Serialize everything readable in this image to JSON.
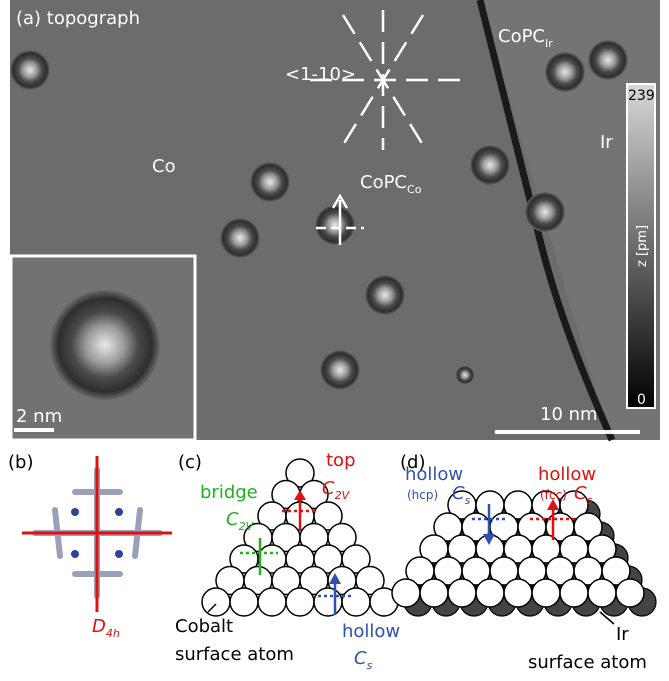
{
  "panel_a": {
    "label": "(a) topograph",
    "direction": "<1-10>",
    "molecule_ir": {
      "text": "CoPC",
      "sub": "Ir"
    },
    "region_ir": "Ir",
    "region_co": "Co",
    "molecule_co": {
      "text": "CoPC",
      "sub": "Co"
    },
    "colorbar": {
      "max": "239",
      "axis": "z [pm]",
      "min": "0"
    },
    "inset_scale": "2 nm",
    "scale": "10 nm"
  },
  "panel_b": {
    "label": "(b)",
    "symmetry": {
      "text": "D",
      "sub": "4h"
    }
  },
  "panel_c": {
    "label": "(c)",
    "top": "top",
    "top_symmetry": {
      "text": "C",
      "sub": "2V"
    },
    "bridge": "bridge",
    "bridge_symmetry": {
      "text": "C",
      "sub": "2V"
    },
    "atom_label": [
      "Cobalt",
      "surface atom"
    ],
    "hollow": "hollow",
    "hollow_symmetry": {
      "text": "C",
      "sub": "s"
    }
  },
  "panel_d": {
    "label": "(d)",
    "hollow_hcp": "hollow",
    "hcp": "(hcp)",
    "hcp_symmetry": {
      "text": "C",
      "sub": "s"
    },
    "hollow_fcc": "hollow",
    "fcc": "(fcc)",
    "fcc_symmetry": {
      "text": "C",
      "sub": "s"
    },
    "ir": "Ir",
    "atom_label": "surface atom"
  }
}
